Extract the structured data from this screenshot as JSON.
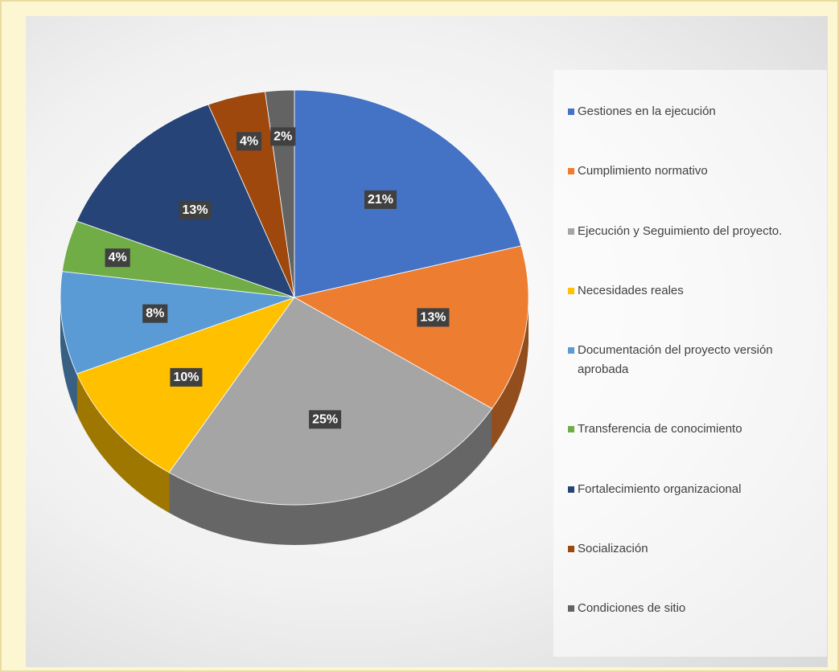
{
  "chart_data": {
    "type": "pie",
    "categories": [
      "Gestiones en la ejecución",
      "Cumplimiento normativo",
      "Ejecución y Seguimiento del proyecto.",
      "Necesidades reales",
      "Documentación del proyecto versión aprobada",
      "Transferencia de conocimiento",
      "Fortalecimiento organizacional",
      "Socialización",
      "Condiciones de sitio"
    ],
    "values": [
      21,
      13,
      25,
      10,
      8,
      4,
      13,
      4,
      2
    ],
    "value_labels": [
      "21%",
      "13%",
      "25%",
      "10%",
      "8%",
      "4%",
      "13%",
      "4%",
      "2%"
    ],
    "colors": [
      "#4472c4",
      "#ed7d31",
      "#a5a5a5",
      "#ffc000",
      "#5b9bd5",
      "#70ad47",
      "#264478",
      "#9e480e",
      "#636363"
    ],
    "legend": "right"
  }
}
